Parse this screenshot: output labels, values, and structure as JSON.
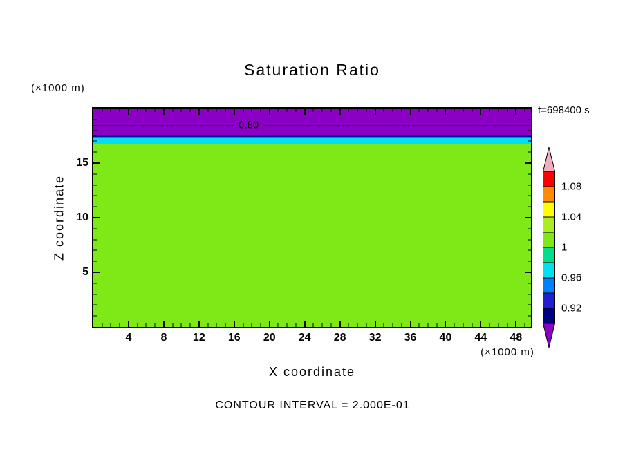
{
  "chart_data": {
    "type": "heatmap",
    "title": "Saturation Ratio",
    "time_label": "t=698400 s",
    "xlabel": "X coordinate",
    "ylabel": "Z coordinate",
    "x_unit_label": "(×1000 m)",
    "y_unit_label": "(×1000 m)",
    "contour_note": "CONTOUR INTERVAL = 2.000E-01",
    "x_range": [
      0,
      49.7
    ],
    "y_range": [
      0,
      20
    ],
    "x_major_ticks": [
      4,
      8,
      12,
      16,
      20,
      24,
      28,
      32,
      36,
      40,
      44,
      48
    ],
    "x_minor_step": 1,
    "y_major_ticks": [
      5,
      10,
      15
    ],
    "y_minor_step": 1,
    "grid": false,
    "legend_position": "right",
    "bands_top_to_bottom": [
      {
        "approx_value": "0.80-0.90",
        "color": "#8A00C4",
        "height_frac": 0.12
      },
      {
        "approx_value": "0.92",
        "color": "#0000A0",
        "height_frac": 0.01
      },
      {
        "approx_value": "0.94",
        "color": "#0080FF",
        "height_frac": 0.006
      },
      {
        "approx_value": "0.96",
        "color": "#00E0F0",
        "height_frac": 0.028
      },
      {
        "approx_value": "1.00",
        "color": "#7FE817",
        "height_frac": 0.836
      }
    ],
    "labeled_contour": {
      "text": "0.80",
      "value": 0.8,
      "x_frac": 0.355,
      "y_frac": 0.076,
      "color": "#26004D"
    },
    "colorbar": {
      "top_arrow_color": "#F2AEBE",
      "bottom_arrow_color": "#8A00C4",
      "segments_top_to_bottom": [
        {
          "color": "#FF0000",
          "label_at_bottom": "1.08"
        },
        {
          "color": "#FF8C00"
        },
        {
          "color": "#FFFF00",
          "label_at_bottom": "1.04"
        },
        {
          "color": "#AAEE22"
        },
        {
          "color": "#7FE817",
          "label_at_bottom": "1"
        },
        {
          "color": "#00E08C"
        },
        {
          "color": "#00E0F0",
          "label_at_bottom": "0.96"
        },
        {
          "color": "#0080FF"
        },
        {
          "color": "#2020D0",
          "label_at_bottom": "0.92"
        },
        {
          "color": "#000080"
        }
      ]
    }
  }
}
